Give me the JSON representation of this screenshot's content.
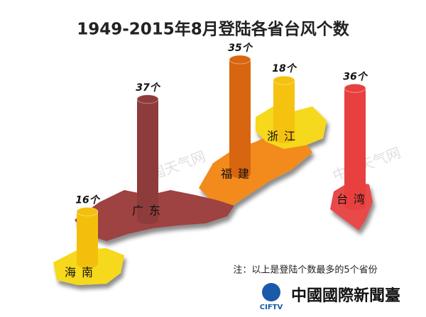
{
  "chart_data": {
    "type": "bar",
    "title": "1949-2015年8月登陆各省台风个数",
    "categories": [
      "海南",
      "广东",
      "福建",
      "浙江",
      "台湾"
    ],
    "values": [
      16,
      37,
      35,
      18,
      36
    ],
    "value_labels": [
      "16个",
      "37个",
      "35个",
      "18个",
      "36个"
    ],
    "colors": [
      "#f2c00c",
      "#8e3b3b",
      "#d8650f",
      "#f4c20f",
      "#e8403f"
    ],
    "note": "注：以上是登陆个数最多的5个省份",
    "watermark": "中国天气网",
    "logo_text": "中國國際新聞臺",
    "logo_abbr": "CIFTV"
  }
}
